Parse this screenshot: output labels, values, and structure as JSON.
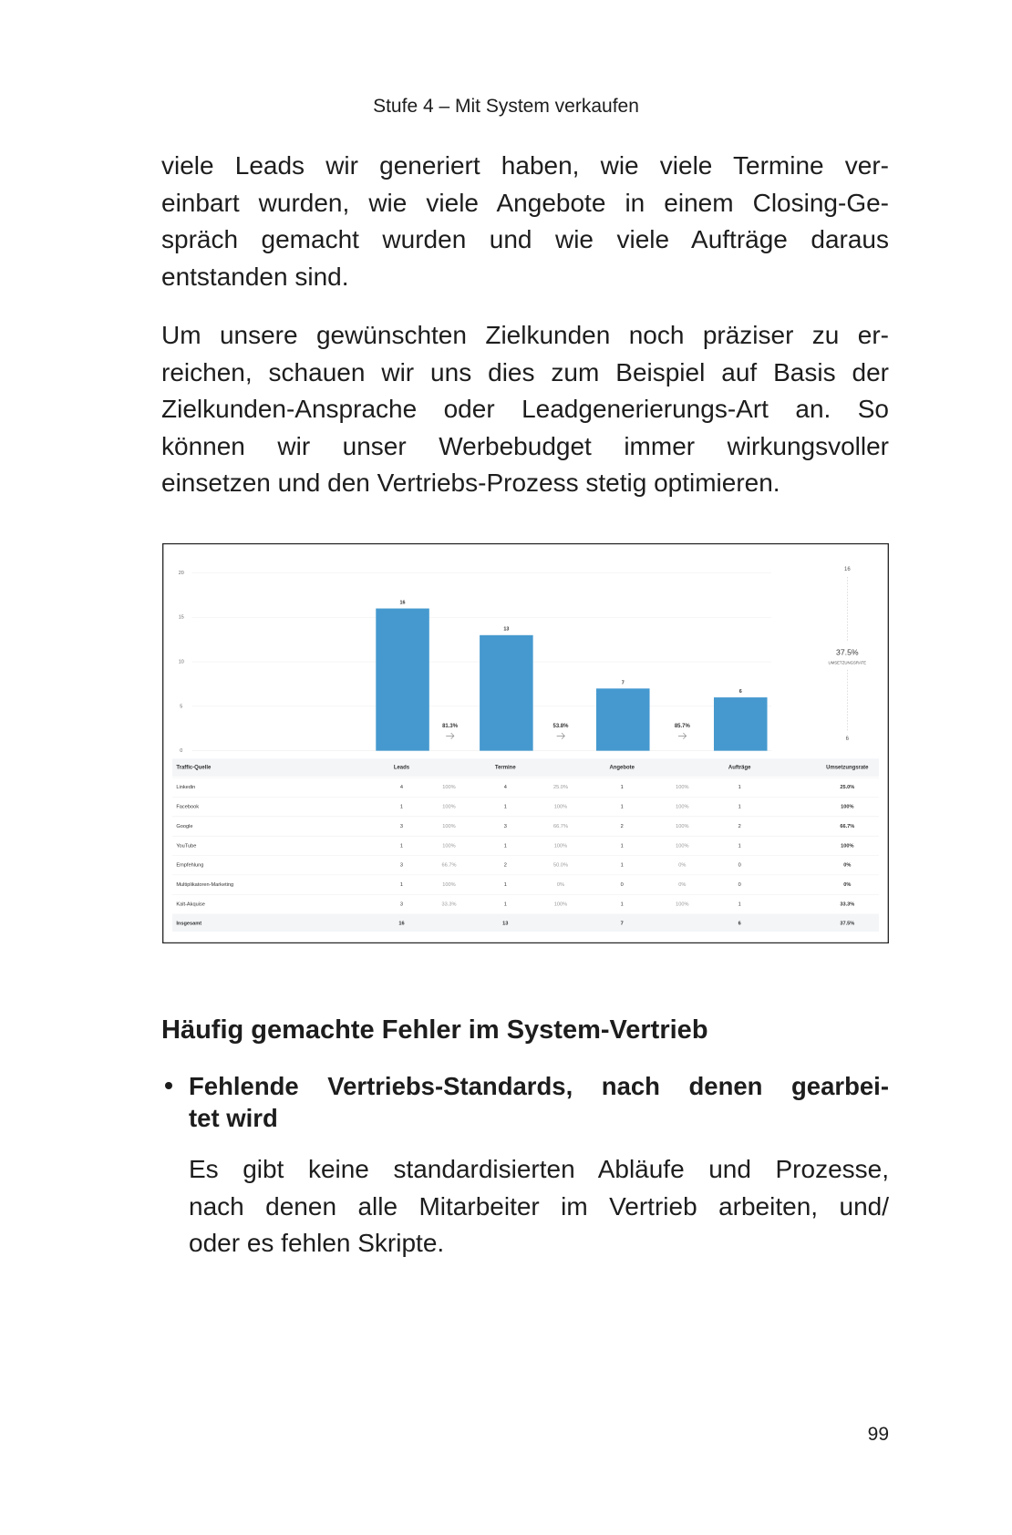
{
  "header": {
    "running_title": "Stufe 4 – Mit System verkaufen"
  },
  "paragraphs": [
    [
      "viele Leads wir generiert haben, wie viele Termine ver-",
      "einbart wurden, wie viele Angebote in einem Closing-Ge-",
      "spräch gemacht wurden und wie viele Aufträge daraus",
      "entstanden sind."
    ],
    [
      "Um unsere gewünschten Zielkunden noch präziser zu er-",
      "reichen, schauen wir uns dies zum Beispiel auf Basis der",
      "Zielkunden-Ansprache oder Leadgenerierungs-Art an. So",
      "können wir unser Werbebudget immer wirkungsvoller",
      "einsetzen und den Vertriebs-Prozess stetig optimieren."
    ]
  ],
  "chart_data": {
    "type": "bar",
    "categories": [
      "Leads",
      "Termine",
      "Angebote",
      "Aufträge"
    ],
    "values": [
      16,
      13,
      7,
      6
    ],
    "color": "#4599cf",
    "ylim": [
      0,
      20
    ],
    "yticks": [
      0,
      5,
      10,
      15,
      20
    ],
    "grid": true,
    "conversion_rates": {
      "values": [
        81.3,
        53.8,
        85.7
      ],
      "value_labels": [
        "81.3%",
        "53.8%",
        "85.7%"
      ]
    },
    "summary": {
      "start": 16,
      "rate": 37.5,
      "rate_label": "37.5%",
      "caption": "UMSETZUNGSRATE",
      "end": 6
    }
  },
  "table": {
    "columns": [
      "Traffic-Quelle",
      "Leads",
      null,
      "Termine",
      null,
      "Angebote",
      null,
      "Aufträge",
      "Umsetzungsrate"
    ],
    "rows": [
      [
        "Linkedin",
        "4",
        "100%",
        "4",
        "25.0%",
        "1",
        "100%",
        "1",
        "25.0%"
      ],
      [
        "Facebook",
        "1",
        "100%",
        "1",
        "100%",
        "1",
        "100%",
        "1",
        "100%"
      ],
      [
        "Google",
        "3",
        "100%",
        "3",
        "66.7%",
        "2",
        "100%",
        "2",
        "66.7%"
      ],
      [
        "YouTube",
        "1",
        "100%",
        "1",
        "100%",
        "1",
        "100%",
        "1",
        "100%"
      ],
      [
        "Empfehlung",
        "3",
        "66.7%",
        "2",
        "50.0%",
        "1",
        "0%",
        "0",
        "0%"
      ],
      [
        "Multiplikatoren-Marketing",
        "1",
        "100%",
        "1",
        "0%",
        "0",
        "0%",
        "0",
        "0%"
      ],
      [
        "Kalt-Akquise",
        "3",
        "33.3%",
        "1",
        "100%",
        "1",
        "100%",
        "1",
        "33.3%"
      ]
    ],
    "total": [
      "Insgesamt",
      "16",
      null,
      "13",
      null,
      "7",
      null,
      "6",
      "37.5%"
    ]
  },
  "section": {
    "heading": "Häufig gemachte Fehler im System-Vertrieb",
    "items": [
      {
        "title_lines": [
          "Fehlende Vertriebs-Standards, nach denen gearbei-",
          "tet wird"
        ],
        "body_lines": [
          "Es gibt keine standardisierten Abläufe und Prozesse,",
          "nach denen alle Mitarbeiter im Vertrieb arbeiten, und/",
          "oder es fehlen Skripte."
        ]
      }
    ]
  },
  "page_number": 99
}
